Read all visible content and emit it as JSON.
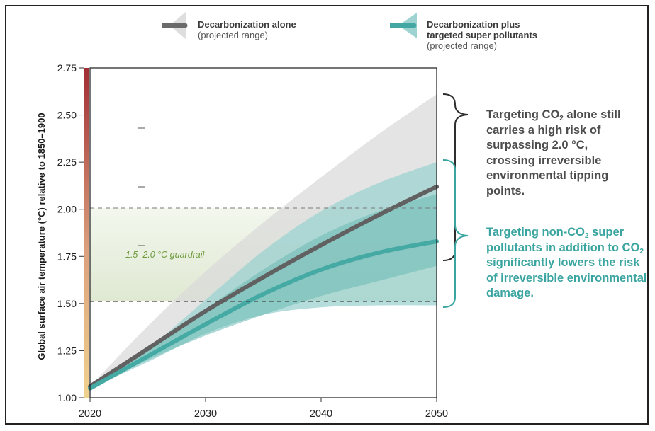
{
  "legend": {
    "alone": {
      "title": "Decarbonization alone",
      "sub": "(projected range)",
      "color": "#6a6a6a",
      "band_color": "#d9d9d9"
    },
    "plus": {
      "title_line1": "Decarbonization plus",
      "title_line2": "targeted super pollutants",
      "sub": "(projected range)",
      "color": "#43a8a3",
      "band_color": "#9fd3d1"
    }
  },
  "annotations": {
    "grey": {
      "part1": "Targeting CO",
      "sub": "2",
      "part2": " alone still carries a high risk of surpassing 2.0 °C, crossing irreversible environmental tipping points."
    },
    "teal": {
      "part1": "Targeting non-CO",
      "sub1": "2",
      "part2": " super pollutants in addition to CO",
      "sub2": "2",
      "part3": " significantly lowers the risk of irreversible environmental damage."
    }
  },
  "chart_data": {
    "type": "line",
    "ylabel": "Global surface air temperature (°C) relative to 1850–1900",
    "xlim": [
      2020,
      2050
    ],
    "ylim": [
      1.0,
      2.75
    ],
    "x_ticks": [
      "2020",
      "2030",
      "2040",
      "2050"
    ],
    "y_ticks": [
      "1.00",
      "1.25",
      "1.50",
      "1.75",
      "2.00",
      "2.25",
      "2.50",
      "2.75"
    ],
    "guardrail": {
      "label": "1.5–2.0 °C guardrail",
      "lower": 1.5,
      "upper": 2.0,
      "color": "#6e9a3c"
    },
    "x": [
      2020,
      2025,
      2030,
      2035,
      2040,
      2045,
      2050
    ],
    "series": [
      {
        "name": "Decarbonization alone",
        "color": "#616161",
        "values": [
          1.06,
          1.26,
          1.46,
          1.64,
          1.81,
          1.97,
          2.12
        ],
        "band_lower": [
          1.06,
          1.24,
          1.4,
          1.54,
          1.66,
          1.75,
          1.82
        ],
        "band_upper": [
          1.06,
          1.38,
          1.67,
          1.93,
          2.17,
          2.4,
          2.61
        ]
      },
      {
        "name": "Decarbonization plus targeted super pollutants",
        "color": "#45a9a4",
        "values": [
          1.05,
          1.22,
          1.39,
          1.55,
          1.68,
          1.77,
          1.83
        ],
        "inner_lower": [
          1.05,
          1.2,
          1.33,
          1.44,
          1.54,
          1.62,
          1.7
        ],
        "inner_upper": [
          1.05,
          1.25,
          1.47,
          1.68,
          1.86,
          1.99,
          2.08
        ],
        "band_lower": [
          1.05,
          1.19,
          1.34,
          1.44,
          1.48,
          1.49,
          1.49
        ],
        "band_upper": [
          1.05,
          1.26,
          1.52,
          1.78,
          1.99,
          2.14,
          2.25
        ]
      }
    ]
  }
}
